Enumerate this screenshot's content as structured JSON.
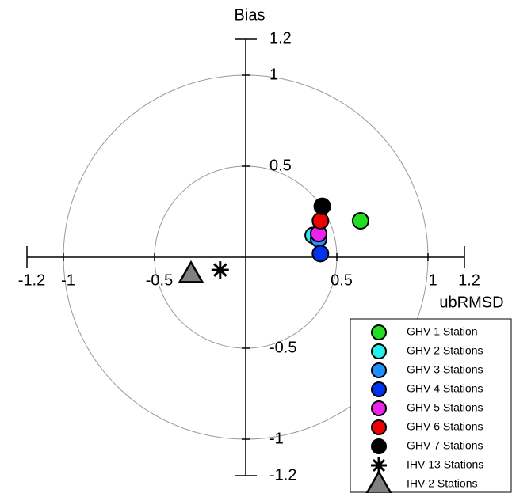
{
  "chart_data": {
    "type": "scatter",
    "xlabel": "ubRMSD",
    "ylabel": "Bias",
    "xlim": [
      -1.2,
      1.2
    ],
    "ylim": [
      -1.2,
      1.2
    ],
    "xticks": [
      -1.2,
      -1,
      -0.5,
      0.5,
      1,
      1.2
    ],
    "yticks": [
      1.2,
      1,
      0.5,
      -0.5,
      -1,
      -1.2
    ],
    "rings": [
      0.5,
      1
    ],
    "series": [
      {
        "name": "GHV 1 Station",
        "color": "#22dd22",
        "marker": "circle",
        "x": [
          0.63
        ],
        "y": [
          0.2
        ]
      },
      {
        "name": "GHV 2 Stations",
        "color": "#22eeee",
        "marker": "circle",
        "x": [
          0.37
        ],
        "y": [
          0.12
        ]
      },
      {
        "name": "GHV 3 Stations",
        "color": "#1e90ff",
        "marker": "circle",
        "x": [
          0.4
        ],
        "y": [
          0.1
        ]
      },
      {
        "name": "GHV 4 Stations",
        "color": "#0033ee",
        "marker": "circle",
        "x": [
          0.41
        ],
        "y": [
          0.02
        ]
      },
      {
        "name": "GHV 5 Stations",
        "color": "#ee22ee",
        "marker": "circle",
        "x": [
          0.4
        ],
        "y": [
          0.13
        ]
      },
      {
        "name": "GHV 6 Stations",
        "color": "#ee0000",
        "marker": "circle",
        "x": [
          0.41
        ],
        "y": [
          0.2
        ]
      },
      {
        "name": "GHV 7 Stations",
        "color": "#000000",
        "marker": "circle",
        "x": [
          0.42
        ],
        "y": [
          0.28
        ]
      },
      {
        "name": "IHV 13 Stations",
        "color": "#000000",
        "marker": "asterisk",
        "x": [
          -0.14
        ],
        "y": [
          -0.07
        ]
      },
      {
        "name": "IHV 2 Stations",
        "color": "#808080",
        "marker": "triangle",
        "x": [
          -0.3
        ],
        "y": [
          -0.09
        ]
      }
    ]
  }
}
